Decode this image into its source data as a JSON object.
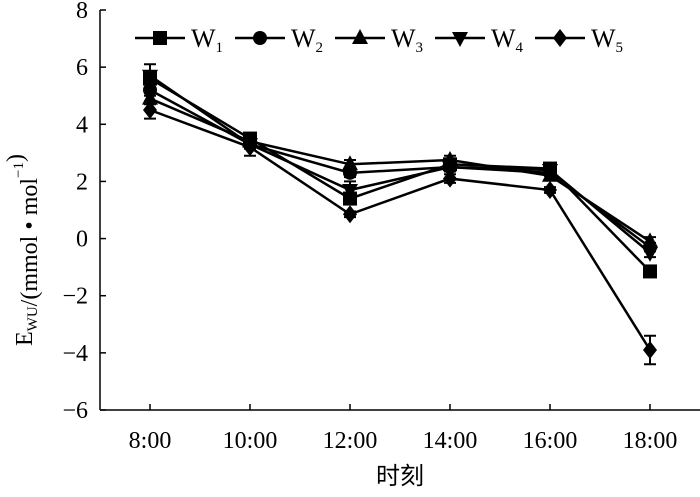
{
  "chart_data": {
    "type": "line",
    "xlabel": "时刻",
    "ylabel_main": "E",
    "ylabel_sub": "WU",
    "ylabel_unit": "/(mmol • mol",
    "ylabel_sup": "−1",
    "ylabel_close": ")",
    "categories": [
      "8:00",
      "10:00",
      "12:00",
      "14:00",
      "16:00",
      "18:00"
    ],
    "ylim": [
      -6,
      8
    ],
    "yticks": [
      -6,
      -4,
      -2,
      0,
      2,
      4,
      6,
      8
    ],
    "ytick_labels": [
      "−6",
      "−4",
      "−2",
      "0",
      "2",
      "4",
      "6",
      "8"
    ],
    "grid": false,
    "legend_position": "top",
    "series": [
      {
        "name": "W",
        "sub": "1",
        "marker": "square",
        "values": [
          5.6,
          3.5,
          1.4,
          2.6,
          2.45,
          -1.15
        ],
        "errors": [
          0.2,
          0.15,
          0.2,
          0.15,
          0.1,
          0.15
        ]
      },
      {
        "name": "W",
        "sub": "2",
        "marker": "circle",
        "values": [
          5.2,
          3.3,
          2.3,
          2.5,
          2.3,
          -0.3
        ],
        "errors": [
          0.2,
          0.15,
          0.15,
          0.15,
          0.1,
          0.15
        ]
      },
      {
        "name": "W",
        "sub": "3",
        "marker": "triangle-up",
        "values": [
          4.9,
          3.4,
          2.6,
          2.75,
          2.2,
          -0.1
        ],
        "errors": [
          0.2,
          0.15,
          0.15,
          0.15,
          0.1,
          0.15
        ]
      },
      {
        "name": "W",
        "sub": "4",
        "marker": "triangle-down",
        "values": [
          5.7,
          3.3,
          1.7,
          2.5,
          2.4,
          -0.5
        ],
        "errors": [
          0.4,
          0.15,
          0.3,
          0.15,
          0.1,
          0.15
        ]
      },
      {
        "name": "W",
        "sub": "5",
        "marker": "diamond",
        "values": [
          4.5,
          3.2,
          0.85,
          2.1,
          1.7,
          -3.9
        ],
        "errors": [
          0.3,
          0.3,
          0.1,
          0.15,
          0.1,
          0.5
        ]
      }
    ]
  }
}
